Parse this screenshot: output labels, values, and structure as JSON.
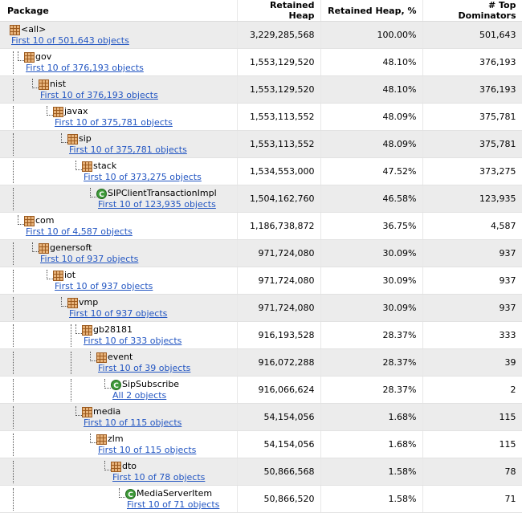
{
  "columns": {
    "package": "Package",
    "retained_heap": "Retained Heap",
    "retained_heap_pct": "Retained Heap, %",
    "top_dominators": "# Top Dominators"
  },
  "rows": [
    {
      "name": "<all>",
      "link": "First 10 of 501,643 objects",
      "heap": "3,229,285,568",
      "pct": "100.00%",
      "dom": "501,643",
      "icon": "package-icon",
      "depth": 0,
      "guides": []
    },
    {
      "name": "gov",
      "link": "First 10 of 376,193 objects",
      "heap": "1,553,129,520",
      "pct": "48.10%",
      "dom": "376,193",
      "icon": "package-icon",
      "depth": 1,
      "guides": [
        0
      ]
    },
    {
      "name": "nist",
      "link": "First 10 of 376,193 objects",
      "heap": "1,553,129,520",
      "pct": "48.10%",
      "dom": "376,193",
      "icon": "package-icon",
      "depth": 2,
      "guides": [
        0
      ]
    },
    {
      "name": "javax",
      "link": "First 10 of 375,781 objects",
      "heap": "1,553,113,552",
      "pct": "48.09%",
      "dom": "375,781",
      "icon": "package-icon",
      "depth": 3,
      "guides": [
        0
      ]
    },
    {
      "name": "sip",
      "link": "First 10 of 375,781 objects",
      "heap": "1,553,113,552",
      "pct": "48.09%",
      "dom": "375,781",
      "icon": "package-icon",
      "depth": 4,
      "guides": [
        0
      ]
    },
    {
      "name": "stack",
      "link": "First 10 of 373,275 objects",
      "heap": "1,534,553,000",
      "pct": "47.52%",
      "dom": "373,275",
      "icon": "package-icon",
      "depth": 5,
      "guides": [
        0
      ]
    },
    {
      "name": "SIPClientTransactionImpl",
      "link": "First 10 of 123,935 objects",
      "heap": "1,504,162,760",
      "pct": "46.58%",
      "dom": "123,935",
      "icon": "class-icon",
      "depth": 6,
      "guides": [
        0
      ]
    },
    {
      "name": "com",
      "link": "First 10 of 4,587 objects",
      "heap": "1,186,738,872",
      "pct": "36.75%",
      "dom": "4,587",
      "icon": "package-icon",
      "depth": 1,
      "guides": []
    },
    {
      "name": "genersoft",
      "link": "First 10 of 937 objects",
      "heap": "971,724,080",
      "pct": "30.09%",
      "dom": "937",
      "icon": "package-icon",
      "depth": 2,
      "guides": [
        0
      ]
    },
    {
      "name": "iot",
      "link": "First 10 of 937 objects",
      "heap": "971,724,080",
      "pct": "30.09%",
      "dom": "937",
      "icon": "package-icon",
      "depth": 3,
      "guides": [
        0
      ]
    },
    {
      "name": "vmp",
      "link": "First 10 of 937 objects",
      "heap": "971,724,080",
      "pct": "30.09%",
      "dom": "937",
      "icon": "package-icon",
      "depth": 4,
      "guides": [
        0
      ]
    },
    {
      "name": "gb28181",
      "link": "First 10 of 333 objects",
      "heap": "916,193,528",
      "pct": "28.37%",
      "dom": "333",
      "icon": "package-icon",
      "depth": 5,
      "guides": [
        0,
        4
      ]
    },
    {
      "name": "event",
      "link": "First 10 of 39 objects",
      "heap": "916,072,288",
      "pct": "28.37%",
      "dom": "39",
      "icon": "package-icon",
      "depth": 6,
      "guides": [
        0,
        4
      ]
    },
    {
      "name": "SipSubscribe",
      "link": "All 2 objects",
      "heap": "916,066,624",
      "pct": "28.37%",
      "dom": "2",
      "icon": "class-icon",
      "depth": 7,
      "guides": [
        0,
        4
      ]
    },
    {
      "name": "media",
      "link": "First 10 of 115 objects",
      "heap": "54,154,056",
      "pct": "1.68%",
      "dom": "115",
      "icon": "package-icon",
      "depth": 5,
      "guides": [
        0
      ]
    },
    {
      "name": "zlm",
      "link": "First 10 of 115 objects",
      "heap": "54,154,056",
      "pct": "1.68%",
      "dom": "115",
      "icon": "package-icon",
      "depth": 6,
      "guides": [
        0
      ]
    },
    {
      "name": "dto",
      "link": "First 10 of 78 objects",
      "heap": "50,866,568",
      "pct": "1.58%",
      "dom": "78",
      "icon": "package-icon",
      "depth": 7,
      "guides": [
        0
      ]
    },
    {
      "name": "MediaServerItem",
      "link": "First 10 of 71 objects",
      "heap": "50,866,520",
      "pct": "1.58%",
      "dom": "71",
      "icon": "class-icon",
      "depth": 8,
      "guides": [
        0
      ]
    }
  ]
}
